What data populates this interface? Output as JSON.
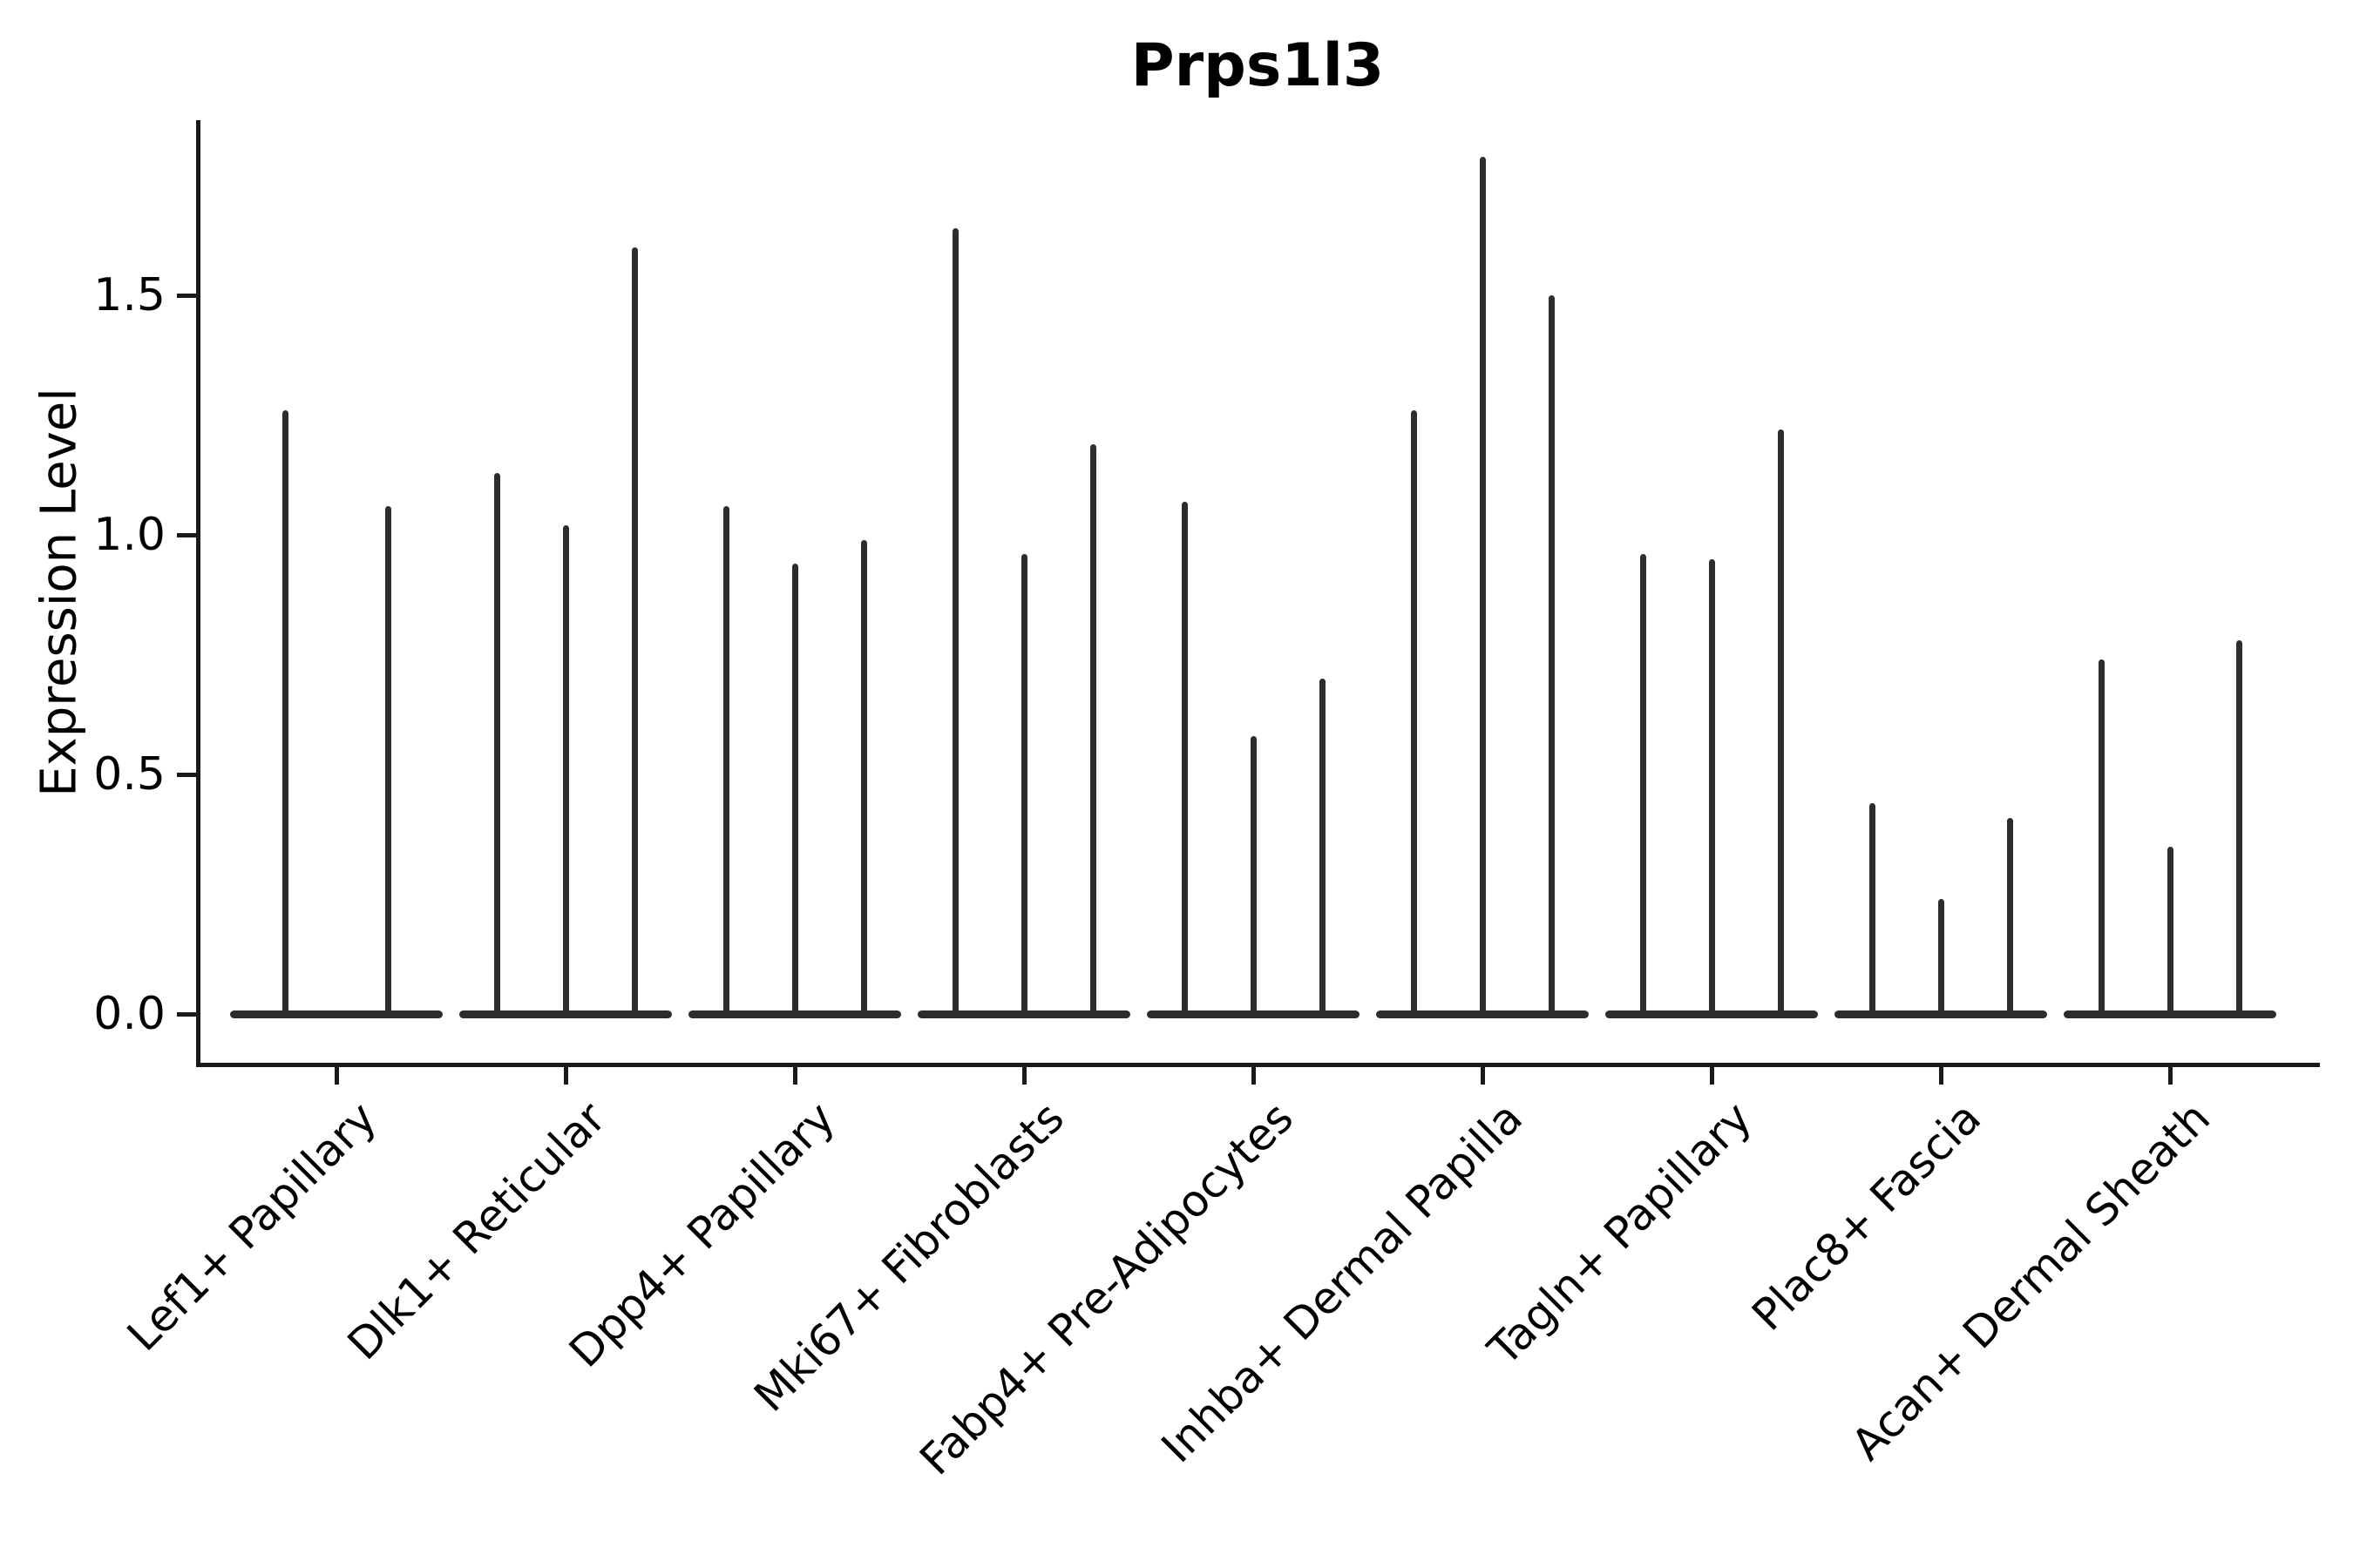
{
  "figure": {
    "title": "Prps1l3",
    "y_axis_label": "Expression Level"
  },
  "chart_data": {
    "type": "violin",
    "title": "Prps1l3",
    "xlabel": "",
    "ylabel": "Expression Level",
    "ylim": [
      0,
      1.88
    ],
    "yticks": [
      0.0,
      0.5,
      1.0,
      1.5
    ],
    "ytick_labels": [
      "0.0",
      "0.5",
      "1.0",
      "1.5"
    ],
    "grid": false,
    "legend": false,
    "categories": [
      "Lef1+ Papillary",
      "Dlk1+ Reticular",
      "Dpp4+ Papillary",
      "Mki67+ Fibroblasts",
      "Fabp4+ Pre-Adipocytes",
      "Inhba+ Dermal Papilla",
      "Tagln+ Papillary",
      "Plac8+ Fascia",
      "Acan+ Dermal Sheath"
    ],
    "violins_per_category": [
      2,
      3,
      3,
      3,
      3,
      3,
      3,
      3,
      3
    ],
    "violin_peaks": [
      [
        1.26,
        1.06
      ],
      [
        1.13,
        1.02,
        1.6
      ],
      [
        1.06,
        0.94,
        0.99
      ],
      [
        1.64,
        0.96,
        1.19
      ],
      [
        1.07,
        0.58,
        0.7
      ],
      [
        1.26,
        1.79,
        1.5
      ],
      [
        0.96,
        0.95,
        1.22
      ],
      [
        0.44,
        0.24,
        0.41
      ],
      [
        0.74,
        0.35,
        0.78
      ]
    ],
    "baseline_value": 0.0
  },
  "colors": {
    "violin": "#2d2d2d",
    "axis": "#1a1a1a",
    "text": "#000000",
    "background": "#ffffff"
  }
}
